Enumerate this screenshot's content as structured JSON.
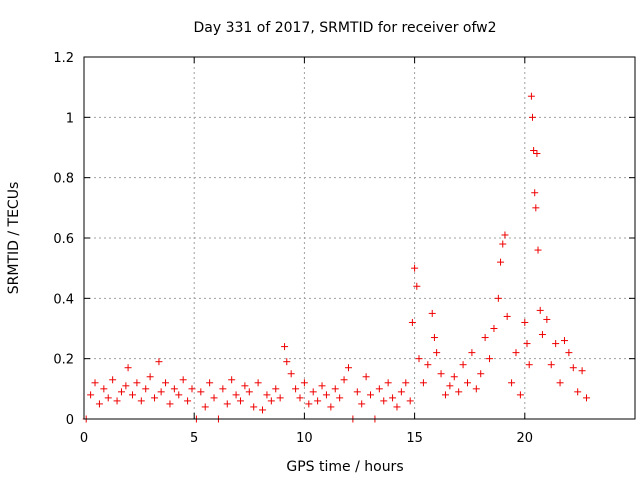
{
  "chart_data": {
    "type": "scatter",
    "title": "Day 331 of 2017, SRMTID for receiver ofw2",
    "xlabel": "GPS time / hours",
    "ylabel": "SRMTID / TECUs",
    "xlim": [
      0,
      25
    ],
    "ylim": [
      0,
      1.2
    ],
    "xticks": [
      0,
      5,
      10,
      15,
      20
    ],
    "yticks": [
      0,
      0.2,
      0.4,
      0.6,
      0.8,
      1,
      1.2
    ],
    "xtick_labels": [
      "0",
      "5",
      "10",
      "15",
      "20"
    ],
    "ytick_labels": [
      "0",
      "0.2",
      "0.4",
      "0.6",
      "0.8",
      "1",
      "1.2"
    ],
    "grid": true,
    "marker": "plus",
    "color": "#ee0000",
    "series": [
      {
        "name": "SRMTID",
        "points": [
          [
            0.1,
            0.0
          ],
          [
            0.3,
            0.08
          ],
          [
            0.5,
            0.12
          ],
          [
            0.7,
            0.05
          ],
          [
            0.9,
            0.1
          ],
          [
            1.1,
            0.07
          ],
          [
            1.3,
            0.13
          ],
          [
            1.5,
            0.06
          ],
          [
            1.7,
            0.09
          ],
          [
            1.9,
            0.11
          ],
          [
            2.0,
            0.17
          ],
          [
            2.2,
            0.08
          ],
          [
            2.4,
            0.12
          ],
          [
            2.6,
            0.06
          ],
          [
            2.8,
            0.1
          ],
          [
            3.0,
            0.14
          ],
          [
            3.2,
            0.07
          ],
          [
            3.4,
            0.19
          ],
          [
            3.5,
            0.09
          ],
          [
            3.7,
            0.12
          ],
          [
            3.9,
            0.05
          ],
          [
            4.1,
            0.1
          ],
          [
            4.3,
            0.08
          ],
          [
            4.5,
            0.13
          ],
          [
            4.7,
            0.06
          ],
          [
            4.9,
            0.1
          ],
          [
            5.1,
            0.0
          ],
          [
            5.3,
            0.09
          ],
          [
            5.5,
            0.04
          ],
          [
            5.7,
            0.12
          ],
          [
            5.9,
            0.07
          ],
          [
            6.1,
            0.0
          ],
          [
            6.3,
            0.1
          ],
          [
            6.5,
            0.05
          ],
          [
            6.7,
            0.13
          ],
          [
            6.9,
            0.08
          ],
          [
            7.1,
            0.06
          ],
          [
            7.3,
            0.11
          ],
          [
            7.5,
            0.09
          ],
          [
            7.7,
            0.04
          ],
          [
            7.9,
            0.12
          ],
          [
            8.1,
            0.03
          ],
          [
            8.3,
            0.08
          ],
          [
            8.5,
            0.06
          ],
          [
            8.7,
            0.1
          ],
          [
            8.9,
            0.07
          ],
          [
            9.1,
            0.24
          ],
          [
            9.2,
            0.19
          ],
          [
            9.4,
            0.15
          ],
          [
            9.6,
            0.1
          ],
          [
            9.8,
            0.07
          ],
          [
            10.0,
            0.12
          ],
          [
            10.2,
            0.05
          ],
          [
            10.4,
            0.09
          ],
          [
            10.6,
            0.06
          ],
          [
            10.8,
            0.11
          ],
          [
            11.0,
            0.08
          ],
          [
            11.2,
            0.04
          ],
          [
            11.4,
            0.1
          ],
          [
            11.6,
            0.07
          ],
          [
            11.8,
            0.13
          ],
          [
            12.0,
            0.17
          ],
          [
            12.2,
            0.0
          ],
          [
            12.4,
            0.09
          ],
          [
            12.6,
            0.05
          ],
          [
            12.8,
            0.14
          ],
          [
            13.0,
            0.08
          ],
          [
            13.2,
            0.0
          ],
          [
            13.4,
            0.1
          ],
          [
            13.6,
            0.06
          ],
          [
            13.8,
            0.12
          ],
          [
            14.0,
            0.07
          ],
          [
            14.2,
            0.04
          ],
          [
            14.4,
            0.09
          ],
          [
            14.6,
            0.12
          ],
          [
            14.8,
            0.06
          ],
          [
            14.9,
            0.32
          ],
          [
            15.0,
            0.5
          ],
          [
            15.1,
            0.44
          ],
          [
            15.2,
            0.2
          ],
          [
            15.4,
            0.12
          ],
          [
            15.6,
            0.18
          ],
          [
            15.8,
            0.35
          ],
          [
            15.9,
            0.27
          ],
          [
            16.0,
            0.22
          ],
          [
            16.2,
            0.15
          ],
          [
            16.4,
            0.08
          ],
          [
            16.6,
            0.11
          ],
          [
            16.8,
            0.14
          ],
          [
            17.0,
            0.09
          ],
          [
            17.2,
            0.18
          ],
          [
            17.4,
            0.12
          ],
          [
            17.6,
            0.22
          ],
          [
            17.8,
            0.1
          ],
          [
            18.0,
            0.15
          ],
          [
            18.2,
            0.27
          ],
          [
            18.4,
            0.2
          ],
          [
            18.6,
            0.3
          ],
          [
            18.8,
            0.4
          ],
          [
            18.9,
            0.52
          ],
          [
            19.0,
            0.58
          ],
          [
            19.1,
            0.61
          ],
          [
            19.2,
            0.34
          ],
          [
            19.4,
            0.12
          ],
          [
            19.6,
            0.22
          ],
          [
            19.8,
            0.08
          ],
          [
            20.0,
            0.32
          ],
          [
            20.1,
            0.25
          ],
          [
            20.2,
            0.18
          ],
          [
            20.3,
            1.07
          ],
          [
            20.35,
            1.0
          ],
          [
            20.4,
            0.89
          ],
          [
            20.45,
            0.75
          ],
          [
            20.5,
            0.7
          ],
          [
            20.55,
            0.88
          ],
          [
            20.6,
            0.56
          ],
          [
            20.7,
            0.36
          ],
          [
            20.8,
            0.28
          ],
          [
            21.0,
            0.33
          ],
          [
            21.2,
            0.18
          ],
          [
            21.4,
            0.25
          ],
          [
            21.6,
            0.12
          ],
          [
            21.8,
            0.26
          ],
          [
            22.0,
            0.22
          ],
          [
            22.2,
            0.17
          ],
          [
            22.4,
            0.09
          ],
          [
            22.6,
            0.16
          ],
          [
            22.8,
            0.07
          ]
        ]
      }
    ]
  }
}
